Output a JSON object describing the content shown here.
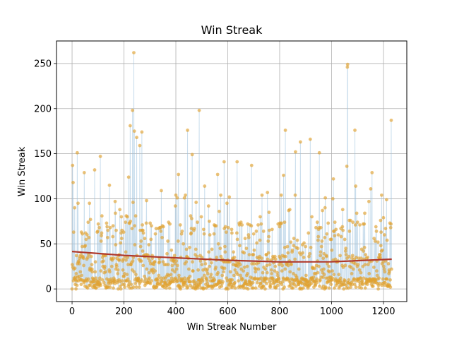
{
  "chart_data": {
    "type": "scatter",
    "title": "Win Streak",
    "xlabel": "Win Streak Number",
    "ylabel": "Win Streak",
    "xlim": [
      -60,
      1290
    ],
    "ylim": [
      -14,
      275
    ],
    "xticks": [
      0,
      200,
      400,
      600,
      800,
      1000,
      1200
    ],
    "yticks": [
      0,
      50,
      100,
      150,
      200,
      250
    ],
    "grid": true,
    "n_points": 1232,
    "highlights": [
      {
        "x": 2,
        "y": 137
      },
      {
        "x": 4,
        "y": 118
      },
      {
        "x": 20,
        "y": 151
      },
      {
        "x": 47,
        "y": 129
      },
      {
        "x": 87,
        "y": 132
      },
      {
        "x": 109,
        "y": 147
      },
      {
        "x": 144,
        "y": 115
      },
      {
        "x": 218,
        "y": 124
      },
      {
        "x": 224,
        "y": 181
      },
      {
        "x": 233,
        "y": 198
      },
      {
        "x": 238,
        "y": 262
      },
      {
        "x": 240,
        "y": 175
      },
      {
        "x": 249,
        "y": 168
      },
      {
        "x": 261,
        "y": 159
      },
      {
        "x": 269,
        "y": 174
      },
      {
        "x": 344,
        "y": 109
      },
      {
        "x": 410,
        "y": 127
      },
      {
        "x": 445,
        "y": 176
      },
      {
        "x": 463,
        "y": 149
      },
      {
        "x": 490,
        "y": 198
      },
      {
        "x": 511,
        "y": 114
      },
      {
        "x": 561,
        "y": 127
      },
      {
        "x": 586,
        "y": 141
      },
      {
        "x": 636,
        "y": 141
      },
      {
        "x": 692,
        "y": 137
      },
      {
        "x": 753,
        "y": 107
      },
      {
        "x": 815,
        "y": 126
      },
      {
        "x": 822,
        "y": 176
      },
      {
        "x": 861,
        "y": 152
      },
      {
        "x": 880,
        "y": 163
      },
      {
        "x": 918,
        "y": 166
      },
      {
        "x": 953,
        "y": 151
      },
      {
        "x": 1007,
        "y": 122
      },
      {
        "x": 1059,
        "y": 136
      },
      {
        "x": 1061,
        "y": 246
      },
      {
        "x": 1062,
        "y": 249
      },
      {
        "x": 1090,
        "y": 176
      },
      {
        "x": 1093,
        "y": 114
      },
      {
        "x": 1151,
        "y": 111
      },
      {
        "x": 1156,
        "y": 129
      },
      {
        "x": 1230,
        "y": 187
      }
    ],
    "trend": {
      "x": [
        0,
        200,
        400,
        600,
        800,
        1000,
        1232
      ],
      "y": [
        41.5,
        37.2,
        34.5,
        31.8,
        30.0,
        30.1,
        33.0
      ]
    },
    "colors": {
      "line": "#9ec3df",
      "points": "#e0a230",
      "trend": "#b0392b",
      "grid": "#b0b0b0"
    }
  }
}
